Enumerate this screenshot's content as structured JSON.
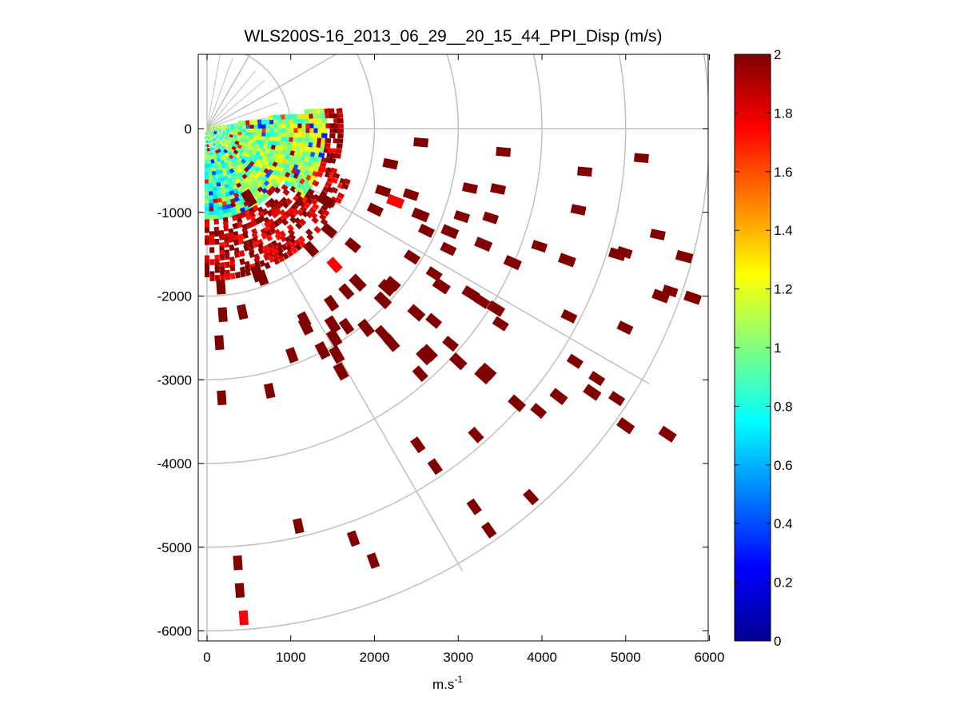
{
  "chart_data": {
    "type": "heatmap",
    "subtype": "polar-ppi-scan",
    "title": "WLS200S-16_2013_06_29__20_15_44_PPI_Disp (m/s)",
    "xlabel": "m.s",
    "xlabel_sup": "-1",
    "ylabel": "",
    "xlim": [
      -100,
      6000
    ],
    "ylim": [
      -6100,
      950
    ],
    "xticks": [
      0,
      1000,
      2000,
      3000,
      4000,
      5000,
      6000
    ],
    "yticks": [
      0,
      -1000,
      -2000,
      -3000,
      -4000,
      -5000,
      -6000
    ],
    "colorbar": {
      "colormap": "jet",
      "range": [
        0,
        2
      ],
      "ticks": [
        0,
        0.2,
        0.4,
        0.6,
        0.8,
        1,
        1.2,
        1.4,
        1.6,
        1.8,
        2
      ]
    },
    "polar_grid": {
      "origin": [
        0,
        0
      ],
      "ring_radii": [
        1000,
        2000,
        3000,
        4000,
        5000,
        6000
      ],
      "spoke_angles_deg": [
        0,
        -30,
        -60,
        -90,
        30,
        60,
        90
      ],
      "color": "#c0c0c0"
    },
    "scan": {
      "azimuth_range_deg": [
        -90,
        10
      ],
      "dense_max_range_m": 1800,
      "value_pattern": "near-field mixed 0.5-1.6 m/s (mostly cyan/yellow), saturated (>=2 m/s) at the edge of the dense sector"
    },
    "far_gates": [
      [
        500,
        830,
        2
      ],
      [
        1420,
        860,
        2
      ],
      [
        2250,
        870,
        1.75
      ],
      [
        2550,
        1030,
        2
      ],
      [
        2900,
        1230,
        2
      ],
      [
        3300,
        1380,
        2
      ],
      [
        3650,
        1600,
        2
      ],
      [
        4300,
        1570,
        2
      ],
      [
        4900,
        1500,
        2
      ],
      [
        5700,
        1530,
        2
      ],
      [
        600,
        1730,
        2
      ],
      [
        1800,
        1840,
        2
      ],
      [
        2150,
        1900,
        2
      ],
      [
        2800,
        1880,
        2
      ],
      [
        3150,
        1970,
        2
      ],
      [
        3450,
        2150,
        2
      ],
      [
        2100,
        2050,
        2
      ],
      [
        2500,
        2200,
        2
      ],
      [
        1500,
        2340,
        2
      ],
      [
        1900,
        2380,
        2
      ],
      [
        2200,
        2560,
        2
      ],
      [
        2600,
        2720,
        2
      ],
      [
        3000,
        2780,
        2
      ],
      [
        3300,
        2950,
        2
      ],
      [
        3700,
        3280,
        2
      ],
      [
        4200,
        3200,
        2
      ],
      [
        4600,
        3150,
        2
      ],
      [
        5000,
        3550,
        2
      ],
      [
        5500,
        3650,
        2
      ],
      [
        5800,
        2020,
        2
      ],
      [
        5420,
        2000,
        2
      ],
      [
        1180,
        2360,
        2
      ],
      [
        1520,
        2500,
        2
      ],
      [
        1550,
        2700,
        2
      ],
      [
        2650,
        2680,
        2
      ],
      [
        3350,
        2900,
        2
      ],
      [
        1380,
        2650,
        2
      ],
      [
        1600,
        2900,
        2
      ]
    ],
    "far_gates_note": "[range_m, along-beam offset_m, value]"
  }
}
